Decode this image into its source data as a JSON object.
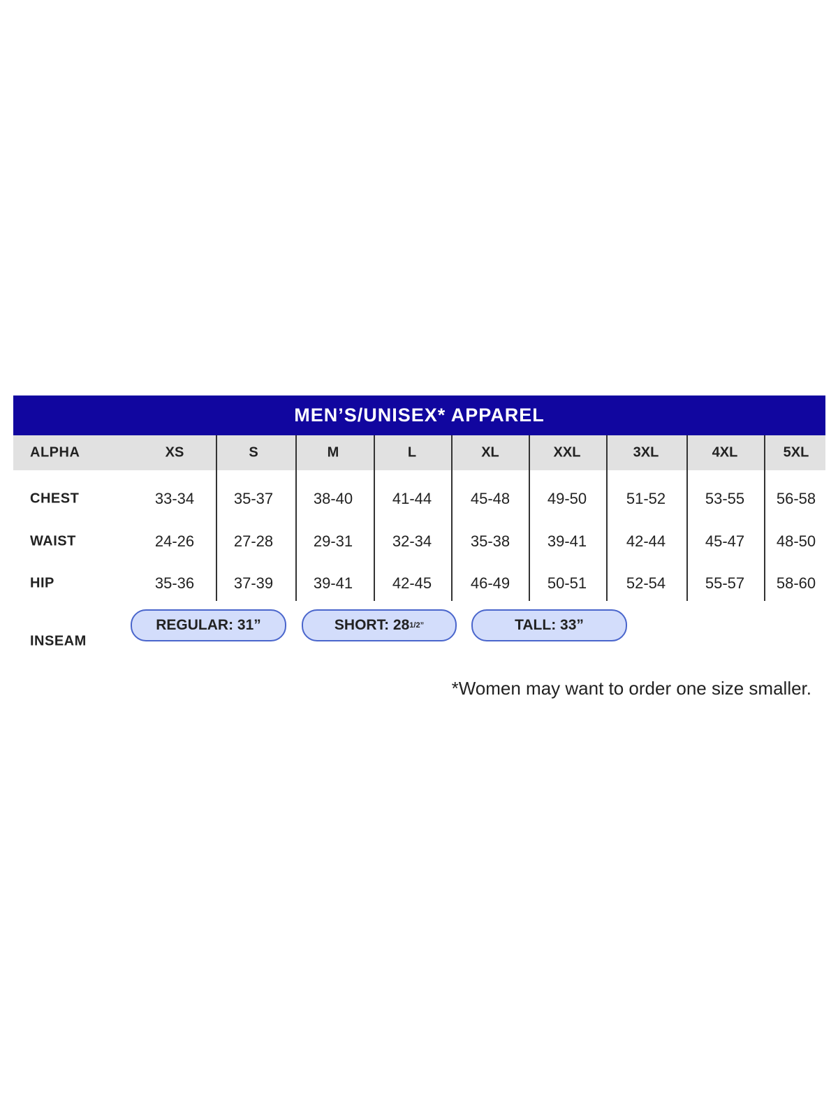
{
  "title": "MEN’S/UNISEX* APPAREL",
  "colors": {
    "title_bg": "#11069f",
    "header_bg": "#e1e1e1",
    "pill_bg": "#d3ddfb",
    "pill_border": "#4a66cc"
  },
  "table": {
    "header_label": "ALPHA",
    "sizes": [
      "XS",
      "S",
      "M",
      "L",
      "XL",
      "XXL",
      "3XL",
      "4XL",
      "5XL"
    ],
    "rows": [
      {
        "label": "CHEST",
        "values": [
          "33-34",
          "35-37",
          "38-40",
          "41-44",
          "45-48",
          "49-50",
          "51-52",
          "53-55",
          "56-58"
        ]
      },
      {
        "label": "WAIST",
        "values": [
          "24-26",
          "27-28",
          "29-31",
          "32-34",
          "35-38",
          "39-41",
          "42-44",
          "45-47",
          "48-50"
        ]
      },
      {
        "label": "HIP",
        "values": [
          "35-36",
          "37-39",
          "39-41",
          "42-45",
          "46-49",
          "50-51",
          "52-54",
          "55-57",
          "58-60"
        ]
      }
    ]
  },
  "inseam": {
    "label": "INSEAM",
    "options": [
      {
        "text": "REGULAR: 31”",
        "sup": ""
      },
      {
        "text": "SHORT: 28",
        "sup": "1/2”"
      },
      {
        "text": "TALL: 33”",
        "sup": ""
      }
    ]
  },
  "footnote": "*Women may want to order one size smaller."
}
